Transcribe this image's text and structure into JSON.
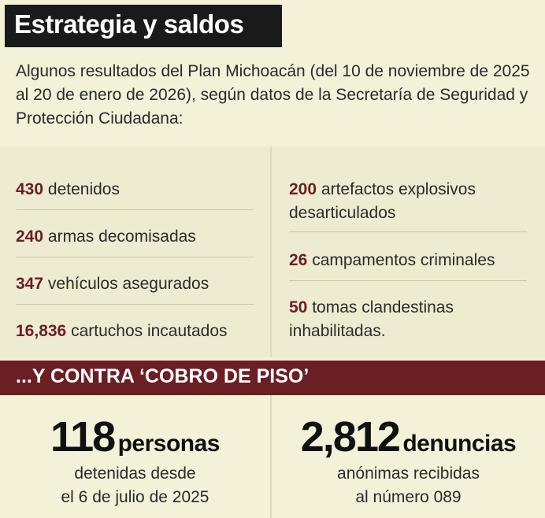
{
  "title": "Estrategia y saldos",
  "intro": "Algunos resultados del Plan Michoacán (del 10 de noviembre de 2025 al 20 de enero de 2026), según datos de la Secretaría de Seguridad y Protección Ciudadana:",
  "stats_left": [
    {
      "number": "430",
      "text": "detenidos"
    },
    {
      "number": "240",
      "text": "armas decomisadas"
    },
    {
      "number": "347",
      "text": "vehículos asegurados"
    },
    {
      "number": "16,836",
      "text": "cartuchos incautados"
    }
  ],
  "stats_right": [
    {
      "number": "200",
      "text": "artefactos explosivos desarticulados"
    },
    {
      "number": "26",
      "text": "campamentos criminales"
    },
    {
      "number": "50",
      "text": "tomas clandestinas inhabilitadas."
    }
  ],
  "band_label": "...Y CONTRA ‘COBRO DE PISO’",
  "bottom_left": {
    "number": "118",
    "unit": "personas",
    "line1": "detenidas desde",
    "line2": "el 6 de julio de 2025"
  },
  "bottom_right": {
    "number": "2,812",
    "unit": "denuncias",
    "line1": "anónimas recibidas",
    "line2": "al número 089"
  },
  "colors": {
    "accent": "#6b1e24",
    "title_bg": "#1a1a1a",
    "background": "#f3f1d8",
    "stats_bg": "#eeecd0"
  }
}
